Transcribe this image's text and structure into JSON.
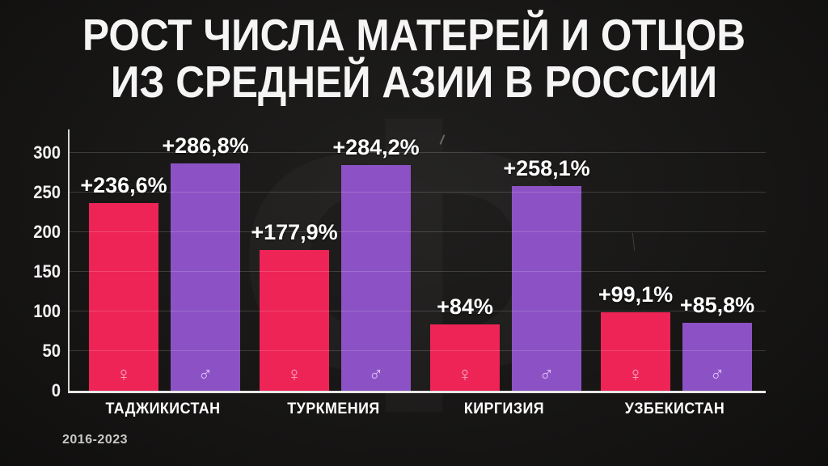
{
  "title": {
    "line1": "РОСТ ЧИСЛА МАТЕРЕЙ И ОТЦОВ",
    "line2": "ИЗ СРЕДНЕЙ АЗИИ В РОССИИ"
  },
  "period_label": "2016-2023",
  "watermark_glyph": "Ф",
  "colors": {
    "background": "#171615",
    "female_bar": "#ee2456",
    "male_bar": "#8c52c5",
    "female_symbol": "#f7a8c3",
    "male_symbol": "#dec4f6",
    "axis": "#e6e6e6",
    "gridline": "rgba(255,255,255,0.16)",
    "text": "#ffffff"
  },
  "chart_data": {
    "type": "bar",
    "title": "Рост числа матерей и отцов из Средней Азии в России",
    "subtitle_period": "2016-2023",
    "categories": [
      "ТАДЖИКИСТАН",
      "ТУРКМЕНИЯ",
      "КИРГИЗИЯ",
      "УЗБЕКИСТАН"
    ],
    "series": [
      {
        "name": "♀",
        "key": "female",
        "symbol": "♀",
        "color": "#ee2456",
        "symbol_color": "#f7a8c3",
        "values": [
          236.6,
          177.9,
          84,
          99.1
        ],
        "labels": [
          "+236,6%",
          "+177,9%",
          "+84%",
          "+99,1%"
        ]
      },
      {
        "name": "♂",
        "key": "male",
        "symbol": "♂",
        "color": "#8c52c5",
        "symbol_color": "#dec4f6",
        "values": [
          286.8,
          284.2,
          258.1,
          85.8
        ],
        "labels": [
          "+286,8%",
          "+284,2%",
          "+258,1%",
          "+85,8%"
        ]
      }
    ],
    "xlabel": "",
    "ylabel": "",
    "ylim": [
      0,
      300
    ],
    "yticks": [
      0,
      50,
      100,
      150,
      200,
      250,
      300
    ],
    "grid": true,
    "legend_position": "none",
    "value_suffix": "%"
  }
}
